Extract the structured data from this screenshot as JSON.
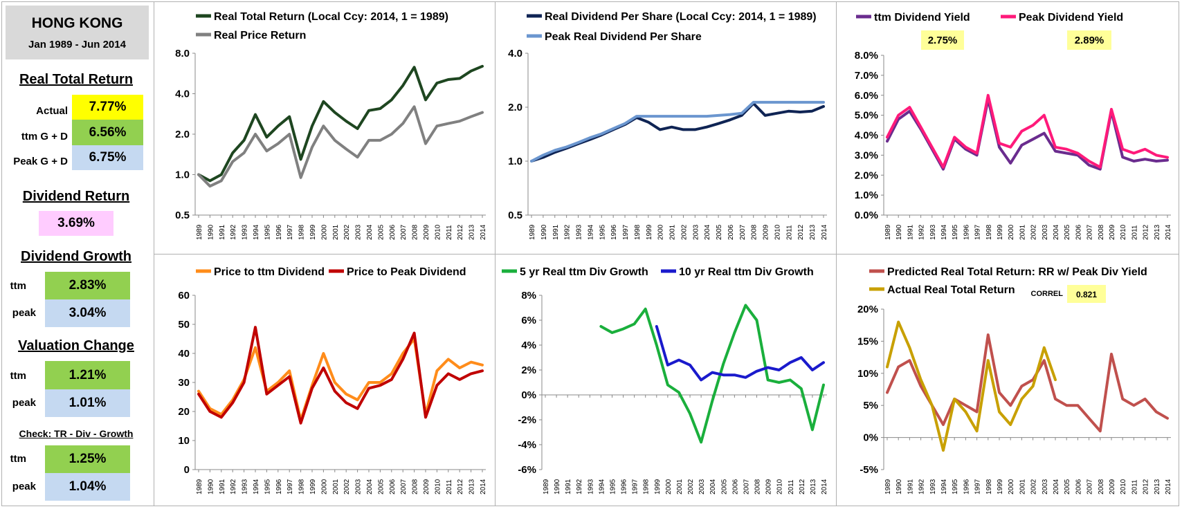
{
  "summary": {
    "country": "HONG KONG",
    "period": "Jan 1989 - Jun 2014",
    "real_total_return": {
      "title": "Real Total Return",
      "rows": [
        {
          "label": "Actual",
          "value": "7.77%",
          "color": "#ffff00"
        },
        {
          "label": "ttm  G + D",
          "value": "6.56%",
          "color": "#92d050"
        },
        {
          "label": "Peak  G + D",
          "value": "6.75%",
          "color": "#c5d9f1"
        }
      ]
    },
    "dividend_return": {
      "title": "Dividend Return",
      "value": "3.69%",
      "color": "#ffccff"
    },
    "dividend_growth": {
      "title": "Dividend Growth",
      "rows": [
        {
          "label": "ttm",
          "value": "2.83%",
          "color": "#92d050"
        },
        {
          "label": "peak",
          "value": "3.04%",
          "color": "#c5d9f1"
        }
      ]
    },
    "valuation_change": {
      "title": "Valuation Change",
      "rows": [
        {
          "label": "ttm",
          "value": "1.21%",
          "color": "#92d050"
        },
        {
          "label": "peak",
          "value": "1.01%",
          "color": "#c5d9f1"
        }
      ]
    },
    "check": {
      "title": "Check: TR - Div - Growth",
      "rows": [
        {
          "label": "ttm",
          "value": "1.25%",
          "color": "#92d050"
        },
        {
          "label": "peak",
          "value": "1.04%",
          "color": "#c5d9f1"
        }
      ]
    }
  },
  "chart_data": [
    {
      "id": "c1",
      "type": "line",
      "yscale": "log",
      "ylim": [
        0.5,
        8.0
      ],
      "ytick_labels": [
        "0.5",
        "1.0",
        "2.0",
        "4.0",
        "8.0"
      ],
      "ytick_values": [
        0.5,
        1.0,
        2.0,
        4.0,
        8.0
      ],
      "categories": [
        "1989",
        "1990",
        "1991",
        "1992",
        "1993",
        "1994",
        "1995",
        "1996",
        "1997",
        "1998",
        "1999",
        "2000",
        "2001",
        "2002",
        "2003",
        "2004",
        "2005",
        "2006",
        "2007",
        "2008",
        "2009",
        "2010",
        "2011",
        "2012",
        "2013",
        "2014"
      ],
      "grid": false,
      "series": [
        {
          "name": "Real Total Return (Local Ccy: 2014, 1 = 1989)",
          "color": "#1e4620",
          "values": [
            1.0,
            0.9,
            1.0,
            1.45,
            1.8,
            2.8,
            1.9,
            2.3,
            2.7,
            1.3,
            2.3,
            3.5,
            2.9,
            2.5,
            2.2,
            3.0,
            3.1,
            3.6,
            4.6,
            6.3,
            3.6,
            4.8,
            5.1,
            5.2,
            5.9,
            6.4
          ]
        },
        {
          "name": "Real Price Return",
          "color": "#808080",
          "values": [
            1.0,
            0.82,
            0.9,
            1.25,
            1.45,
            2.0,
            1.5,
            1.7,
            2.0,
            0.95,
            1.6,
            2.3,
            1.8,
            1.55,
            1.35,
            1.8,
            1.8,
            2.0,
            2.4,
            3.2,
            1.7,
            2.3,
            2.4,
            2.5,
            2.7,
            2.9
          ]
        }
      ]
    },
    {
      "id": "c2",
      "type": "line",
      "yscale": "log",
      "ylim": [
        0.5,
        4.0
      ],
      "ytick_labels": [
        "0.5",
        "1.0",
        "2.0",
        "4.0"
      ],
      "ytick_values": [
        0.5,
        1.0,
        2.0,
        4.0
      ],
      "categories": [
        "1989",
        "1990",
        "1991",
        "1992",
        "1993",
        "1994",
        "1995",
        "1996",
        "1997",
        "1998",
        "1999",
        "2000",
        "2001",
        "2002",
        "2003",
        "2004",
        "2005",
        "2006",
        "2007",
        "2008",
        "2009",
        "2010",
        "2011",
        "2012",
        "2013",
        "2014"
      ],
      "grid": false,
      "series": [
        {
          "name": "Real Dividend Per Share (Local Ccy: 2014, 1 = 1989)",
          "color": "#0f2454",
          "values": [
            1.0,
            1.05,
            1.12,
            1.18,
            1.25,
            1.32,
            1.4,
            1.5,
            1.6,
            1.75,
            1.65,
            1.5,
            1.55,
            1.5,
            1.5,
            1.55,
            1.62,
            1.7,
            1.8,
            2.1,
            1.8,
            1.85,
            1.9,
            1.88,
            1.9,
            2.02
          ]
        },
        {
          "name": "Peak Real Dividend Per Share",
          "color": "#6b96cf",
          "values": [
            1.0,
            1.08,
            1.15,
            1.2,
            1.27,
            1.35,
            1.42,
            1.52,
            1.62,
            1.78,
            1.78,
            1.78,
            1.78,
            1.78,
            1.78,
            1.78,
            1.8,
            1.82,
            1.85,
            2.13,
            2.13,
            2.13,
            2.13,
            2.13,
            2.13,
            2.13
          ]
        }
      ]
    },
    {
      "id": "c3",
      "type": "line",
      "ylim": [
        0,
        8
      ],
      "ytick_labels": [
        "0.0%",
        "1.0%",
        "2.0%",
        "3.0%",
        "4.0%",
        "5.0%",
        "6.0%",
        "7.0%",
        "8.0%"
      ],
      "ytick_values": [
        0,
        1,
        2,
        3,
        4,
        5,
        6,
        7,
        8
      ],
      "categories": [
        "1989",
        "1990",
        "1991",
        "1992",
        "1993",
        "1994",
        "1995",
        "1996",
        "1997",
        "1998",
        "1999",
        "2000",
        "2001",
        "2002",
        "2003",
        "2004",
        "2005",
        "2006",
        "2007",
        "2008",
        "2009",
        "2010",
        "2011",
        "2012",
        "2013",
        "2014"
      ],
      "grid": false,
      "badges": [
        "2.75%",
        "2.89%"
      ],
      "series": [
        {
          "name": "ttm Dividend Yield",
          "color": "#6a2c8e",
          "values": [
            3.7,
            4.8,
            5.2,
            4.3,
            3.3,
            2.3,
            3.8,
            3.3,
            3.0,
            5.8,
            3.4,
            2.6,
            3.5,
            3.8,
            4.1,
            3.2,
            3.1,
            3.0,
            2.5,
            2.3,
            5.2,
            2.9,
            2.7,
            2.8,
            2.7,
            2.75
          ]
        },
        {
          "name": "Peak Dividend Yield",
          "color": "#ff1a7a",
          "values": [
            3.9,
            5.0,
            5.4,
            4.4,
            3.4,
            2.4,
            3.9,
            3.4,
            3.1,
            6.0,
            3.6,
            3.4,
            4.2,
            4.5,
            5.0,
            3.4,
            3.3,
            3.1,
            2.7,
            2.4,
            5.3,
            3.3,
            3.1,
            3.3,
            3.0,
            2.89
          ]
        }
      ]
    },
    {
      "id": "c4",
      "type": "line",
      "ylim": [
        0,
        60
      ],
      "ytick_labels": [
        "0",
        "10",
        "20",
        "30",
        "40",
        "50",
        "60"
      ],
      "ytick_values": [
        0,
        10,
        20,
        30,
        40,
        50,
        60
      ],
      "categories": [
        "1989",
        "1990",
        "1991",
        "1992",
        "1993",
        "1994",
        "1995",
        "1996",
        "1997",
        "1998",
        "1999",
        "2000",
        "2001",
        "2002",
        "2003",
        "2004",
        "2005",
        "2006",
        "2007",
        "2008",
        "2009",
        "2010",
        "2011",
        "2012",
        "2013",
        "2014"
      ],
      "grid": false,
      "series": [
        {
          "name": "Price to ttm Dividend",
          "color": "#ff8c1a",
          "values": [
            27,
            21,
            19,
            24,
            31,
            42,
            27,
            30,
            34,
            17,
            29,
            40,
            30,
            26,
            24,
            30,
            30,
            33,
            40,
            45,
            19,
            34,
            38,
            35,
            37,
            36
          ]
        },
        {
          "name": "Price to Peak Dividend",
          "color": "#c00000",
          "values": [
            26,
            20,
            18,
            23,
            30,
            49,
            26,
            29,
            32,
            16,
            28,
            35,
            27,
            23,
            21,
            28,
            29,
            31,
            38,
            47,
            18,
            29,
            33,
            31,
            33,
            34
          ]
        }
      ]
    },
    {
      "id": "c5",
      "type": "line",
      "ylim": [
        -6,
        8
      ],
      "ytick_labels": [
        "-6%",
        "-4%",
        "-2%",
        "0%",
        "2%",
        "4%",
        "6%",
        "8%"
      ],
      "ytick_values": [
        -6,
        -4,
        -2,
        0,
        2,
        4,
        6,
        8
      ],
      "categories": [
        "1989",
        "1990",
        "1991",
        "1992",
        "1993",
        "1994",
        "1995",
        "1996",
        "1997",
        "1998",
        "1999",
        "2000",
        "2001",
        "2002",
        "2003",
        "2004",
        "2005",
        "2006",
        "2007",
        "2008",
        "2009",
        "2010",
        "2011",
        "2012",
        "2013",
        "2014"
      ],
      "grid": false,
      "series": [
        {
          "name": "5 yr Real ttm Div Growth",
          "color": "#1aaf3c",
          "values": [
            null,
            null,
            null,
            null,
            null,
            5.5,
            5.0,
            5.3,
            5.7,
            6.9,
            4.0,
            0.8,
            0.2,
            -1.5,
            -3.8,
            -0.5,
            2.5,
            5.0,
            7.2,
            6.0,
            1.2,
            1.0,
            1.2,
            0.5,
            -2.8,
            0.8
          ]
        },
        {
          "name": "10 yr Real ttm Div Growth",
          "color": "#1a1acc",
          "values": [
            null,
            null,
            null,
            null,
            null,
            null,
            null,
            null,
            null,
            null,
            5.5,
            2.4,
            2.8,
            2.4,
            1.2,
            1.8,
            1.6,
            1.6,
            1.4,
            1.9,
            2.2,
            2.0,
            2.6,
            3.0,
            2.0,
            2.6
          ]
        }
      ]
    },
    {
      "id": "c6",
      "type": "line",
      "ylim": [
        -5,
        20
      ],
      "ytick_labels": [
        "-5%",
        "0%",
        "5%",
        "10%",
        "15%",
        "20%"
      ],
      "ytick_values": [
        -5,
        0,
        5,
        10,
        15,
        20
      ],
      "categories": [
        "1989",
        "1990",
        "1991",
        "1992",
        "1993",
        "1994",
        "1995",
        "1996",
        "1997",
        "1998",
        "1999",
        "2000",
        "2001",
        "2002",
        "2003",
        "2004",
        "2005",
        "2006",
        "2007",
        "2008",
        "2009",
        "2010",
        "2011",
        "2012",
        "2013",
        "2014"
      ],
      "grid": false,
      "correl_label": "CORREL",
      "correl_value": "0.821",
      "series": [
        {
          "name": "Predicted Real Total Return: RR w/ Peak Div Yield",
          "color": "#c0504d",
          "values": [
            7,
            11,
            12,
            8,
            5,
            2,
            6,
            5,
            4,
            16,
            7,
            5,
            8,
            9,
            12,
            6,
            5,
            5,
            3,
            1,
            13,
            6,
            5,
            6,
            4,
            3
          ]
        },
        {
          "name": "Actual Real Total Return",
          "color": "#c8a000",
          "values": [
            11,
            18,
            14,
            9,
            5,
            -2,
            6,
            4,
            1,
            12,
            4,
            2,
            6,
            8,
            14,
            9,
            null,
            null,
            null,
            null,
            null,
            null,
            null,
            null,
            null,
            null
          ]
        }
      ]
    }
  ]
}
